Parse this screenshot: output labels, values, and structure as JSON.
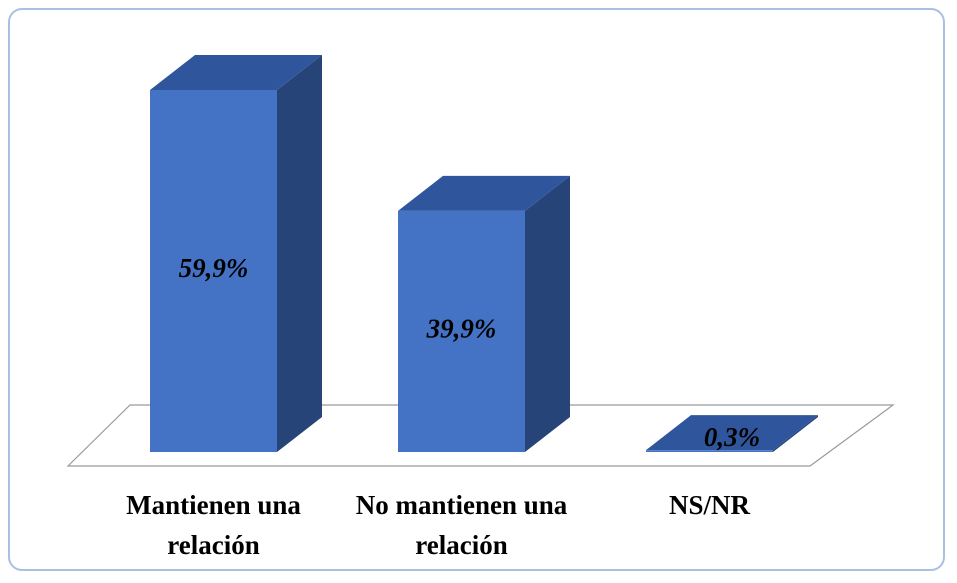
{
  "chart_data": {
    "type": "bar3d",
    "categories": [
      "Mantienen una relación",
      "No mantienen una relación",
      "NS/NR"
    ],
    "values": [
      59.9,
      39.9,
      0.3
    ],
    "value_labels": [
      "59,9%",
      "39,9%",
      "0,3%"
    ],
    "color": "#4472c4"
  }
}
